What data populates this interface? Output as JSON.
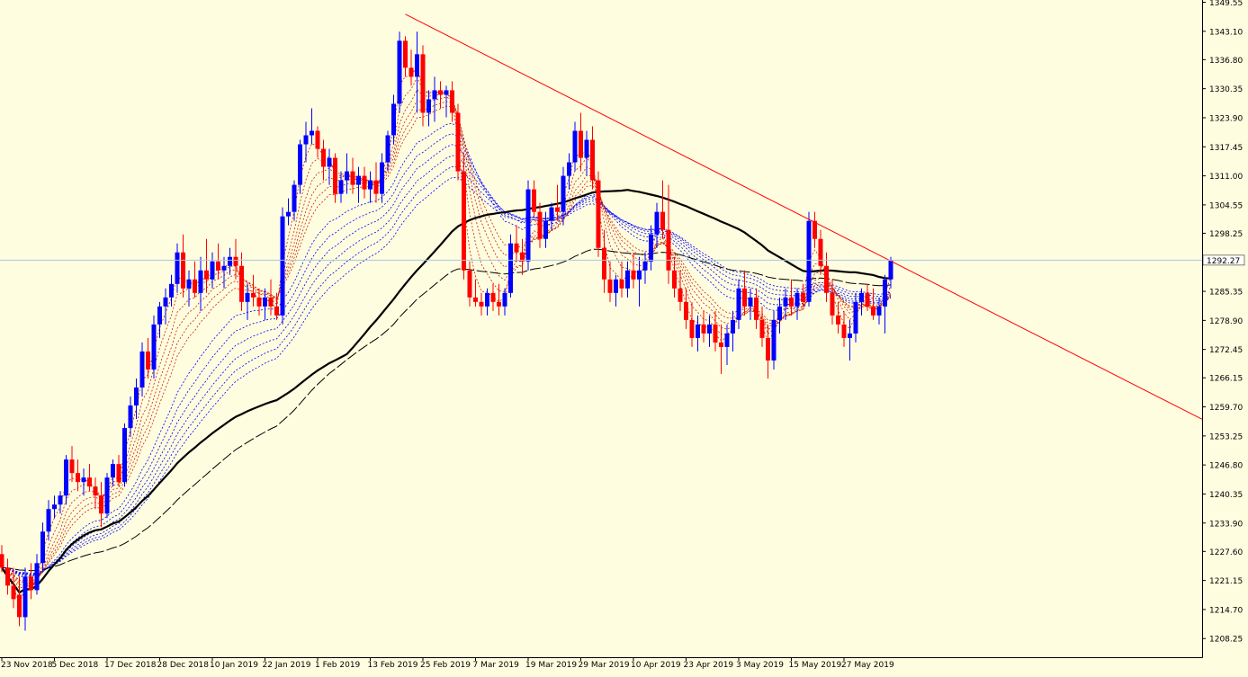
{
  "chart_data": {
    "type": "candlestick",
    "title": "",
    "xlabel": "",
    "ylabel": "",
    "ylim": [
      1205.0,
      1349.55
    ],
    "current_price": "1292.27",
    "y_ticks": [
      "1349.55",
      "1343.10",
      "1336.80",
      "1330.35",
      "1323.90",
      "1317.45",
      "1311.00",
      "1304.55",
      "1298.25",
      "1285.35",
      "1278.90",
      "1272.45",
      "1266.15",
      "1259.70",
      "1253.25",
      "1246.80",
      "1240.35",
      "1233.90",
      "1227.60",
      "1221.15",
      "1214.70",
      "1208.25"
    ],
    "x_ticks": [
      "23 Nov 2018",
      "5 Dec 2018",
      "17 Dec 2018",
      "28 Dec 2018",
      "10 Jan 2019",
      "22 Jan 2019",
      "1 Feb 2019",
      "13 Feb 2019",
      "25 Feb 2019",
      "7 Mar 2019",
      "19 Mar 2019",
      "29 Mar 2019",
      "10 Apr 2019",
      "23 Apr 2019",
      "3 May 2019",
      "15 May 2019",
      "27 May 2019"
    ],
    "x_tick_index": [
      0,
      9,
      18,
      27,
      36,
      45,
      54,
      63,
      72,
      81,
      90,
      99,
      108,
      117,
      126,
      135,
      144
    ],
    "grid": false,
    "colors": {
      "up": "#0000ff",
      "down": "#ff0000",
      "background": "#fffde0",
      "trendline": "#ff0000",
      "ma_long": "#000000",
      "ma_fast": "#cc2200",
      "ma_slow": "#0000ff",
      "price_line": "#a8c8e0"
    },
    "trendline": {
      "start": [
        69,
        1346.9
      ],
      "end": [
        190,
        1267.0
      ]
    },
    "candles": [
      [
        1227.0,
        1229.0,
        1223.0,
        1224.0
      ],
      [
        1224.0,
        1226.0,
        1218.0,
        1220.0
      ],
      [
        1220.0,
        1224.0,
        1215.0,
        1217.0
      ],
      [
        1218.0,
        1222.0,
        1211.0,
        1213.0
      ],
      [
        1213.0,
        1224.0,
        1210.0,
        1222.0
      ],
      [
        1222.0,
        1225.0,
        1217.0,
        1219.0
      ],
      [
        1219.0,
        1227.0,
        1218.0,
        1225.0
      ],
      [
        1225.0,
        1234.0,
        1223.0,
        1232.0
      ],
      [
        1232.0,
        1239.0,
        1230.0,
        1237.0
      ],
      [
        1237.0,
        1240.0,
        1235.0,
        1238.0
      ],
      [
        1238.0,
        1241.0,
        1236.0,
        1240.0
      ],
      [
        1240.0,
        1249.0,
        1238.0,
        1248.0
      ],
      [
        1248.0,
        1251.0,
        1243.0,
        1245.0
      ],
      [
        1245.0,
        1248.0,
        1241.0,
        1243.0
      ],
      [
        1243.0,
        1246.0,
        1240.0,
        1244.0
      ],
      [
        1244.0,
        1247.0,
        1241.0,
        1242.0
      ],
      [
        1242.0,
        1244.0,
        1237.0,
        1240.0
      ],
      [
        1240.0,
        1243.0,
        1233.0,
        1236.0
      ],
      [
        1236.0,
        1245.0,
        1235.0,
        1244.0
      ],
      [
        1244.0,
        1248.0,
        1242.0,
        1247.0
      ],
      [
        1247.0,
        1249.0,
        1242.0,
        1243.0
      ],
      [
        1243.0,
        1256.0,
        1242.0,
        1255.0
      ],
      [
        1255.0,
        1262.0,
        1253.0,
        1260.0
      ],
      [
        1260.0,
        1266.0,
        1257.0,
        1264.0
      ],
      [
        1264.0,
        1274.0,
        1262.0,
        1272.0
      ],
      [
        1272.0,
        1275.0,
        1266.0,
        1268.0
      ],
      [
        1268.0,
        1280.0,
        1266.0,
        1278.0
      ],
      [
        1278.0,
        1283.0,
        1275.0,
        1282.0
      ],
      [
        1282.0,
        1286.0,
        1278.0,
        1284.0
      ],
      [
        1284.0,
        1289.0,
        1282.0,
        1287.0
      ],
      [
        1287.0,
        1296.0,
        1285.0,
        1294.0
      ],
      [
        1294.0,
        1298.0,
        1284.0,
        1286.0
      ],
      [
        1286.0,
        1290.0,
        1282.0,
        1288.0
      ],
      [
        1288.0,
        1292.0,
        1284.0,
        1285.0
      ],
      [
        1285.0,
        1293.0,
        1281.0,
        1290.0
      ],
      [
        1290.0,
        1297.0,
        1285.0,
        1288.0
      ],
      [
        1288.0,
        1294.0,
        1286.0,
        1292.0
      ],
      [
        1292.0,
        1296.0,
        1288.0,
        1290.0
      ],
      [
        1290.0,
        1293.0,
        1286.0,
        1291.0
      ],
      [
        1291.0,
        1295.0,
        1289.0,
        1293.0
      ],
      [
        1293.0,
        1297.0,
        1288.0,
        1291.0
      ],
      [
        1291.0,
        1294.0,
        1281.0,
        1283.0
      ],
      [
        1283.0,
        1287.0,
        1279.0,
        1285.0
      ],
      [
        1285.0,
        1289.0,
        1282.0,
        1284.0
      ],
      [
        1284.0,
        1286.0,
        1280.0,
        1282.0
      ],
      [
        1282.0,
        1286.0,
        1279.0,
        1284.0
      ],
      [
        1284.0,
        1288.0,
        1280.0,
        1282.0
      ],
      [
        1282.0,
        1285.0,
        1279.0,
        1280.0
      ],
      [
        1280.0,
        1304.0,
        1278.0,
        1302.0
      ],
      [
        1302.0,
        1306.0,
        1300.0,
        1303.0
      ],
      [
        1303.0,
        1310.0,
        1301.0,
        1309.0
      ],
      [
        1309.0,
        1319.0,
        1307.0,
        1318.0
      ],
      [
        1318.0,
        1323.0,
        1314.0,
        1320.0
      ],
      [
        1320.0,
        1326.0,
        1318.0,
        1321.0
      ],
      [
        1321.0,
        1322.0,
        1315.0,
        1317.0
      ],
      [
        1317.0,
        1319.0,
        1310.0,
        1313.0
      ],
      [
        1313.0,
        1317.0,
        1309.0,
        1315.0
      ],
      [
        1315.0,
        1316.0,
        1305.0,
        1307.0
      ],
      [
        1307.0,
        1312.0,
        1305.0,
        1310.0
      ],
      [
        1310.0,
        1316.0,
        1307.0,
        1312.0
      ],
      [
        1312.0,
        1315.0,
        1307.0,
        1309.0
      ],
      [
        1309.0,
        1313.0,
        1305.0,
        1311.0
      ],
      [
        1311.0,
        1313.0,
        1306.0,
        1308.0
      ],
      [
        1308.0,
        1312.0,
        1305.0,
        1310.0
      ],
      [
        1310.0,
        1314.0,
        1305.0,
        1307.0
      ],
      [
        1307.0,
        1316.0,
        1305.0,
        1314.0
      ],
      [
        1314.0,
        1321.0,
        1312.0,
        1320.0
      ],
      [
        1320.0,
        1329.0,
        1318.0,
        1327.0
      ],
      [
        1327.0,
        1343.0,
        1325.0,
        1341.0
      ],
      [
        1341.0,
        1342.0,
        1333.0,
        1335.0
      ],
      [
        1335.0,
        1339.0,
        1331.0,
        1333.0
      ],
      [
        1333.0,
        1343.0,
        1325.0,
        1338.0
      ],
      [
        1338.0,
        1340.0,
        1322.0,
        1325.0
      ],
      [
        1325.0,
        1330.0,
        1322.0,
        1328.0
      ],
      [
        1328.0,
        1333.0,
        1323.0,
        1330.0
      ],
      [
        1330.0,
        1332.0,
        1326.0,
        1329.0
      ],
      [
        1329.0,
        1331.0,
        1324.0,
        1330.0
      ],
      [
        1330.0,
        1332.0,
        1323.0,
        1325.0
      ],
      [
        1325.0,
        1327.0,
        1310.0,
        1312.0
      ],
      [
        1312.0,
        1316.0,
        1288.0,
        1290.0
      ],
      [
        1290.0,
        1292.0,
        1282.0,
        1284.0
      ],
      [
        1284.0,
        1288.0,
        1282.0,
        1283.0
      ],
      [
        1283.0,
        1285.0,
        1280.0,
        1282.0
      ],
      [
        1282.0,
        1286.0,
        1280.0,
        1285.0
      ],
      [
        1285.0,
        1287.0,
        1281.0,
        1283.0
      ],
      [
        1283.0,
        1287.0,
        1280.0,
        1282.0
      ],
      [
        1282.0,
        1286.0,
        1280.0,
        1285.0
      ],
      [
        1285.0,
        1298.0,
        1284.0,
        1296.0
      ],
      [
        1296.0,
        1300.0,
        1292.0,
        1294.0
      ],
      [
        1294.0,
        1297.0,
        1289.0,
        1292.0
      ],
      [
        1292.0,
        1310.0,
        1290.0,
        1308.0
      ],
      [
        1308.0,
        1310.0,
        1302.0,
        1303.0
      ],
      [
        1303.0,
        1305.0,
        1295.0,
        1297.0
      ],
      [
        1297.0,
        1303.0,
        1295.0,
        1301.0
      ],
      [
        1301.0,
        1305.0,
        1299.0,
        1304.0
      ],
      [
        1304.0,
        1309.0,
        1301.0,
        1303.0
      ],
      [
        1303.0,
        1313.0,
        1300.0,
        1311.0
      ],
      [
        1311.0,
        1316.0,
        1308.0,
        1314.0
      ],
      [
        1314.0,
        1323.0,
        1312.0,
        1321.0
      ],
      [
        1321.0,
        1325.0,
        1312.0,
        1315.0
      ]
    ],
    "candles_2": [
      [
        1315.0,
        1321.0,
        1311.0,
        1319.0
      ],
      [
        1319.0,
        1322.0,
        1308.0,
        1310.0
      ],
      [
        1310.0,
        1312.0,
        1293.0,
        1295.0
      ],
      [
        1295.0,
        1299.0,
        1285.0,
        1288.0
      ],
      [
        1288.0,
        1292.0,
        1283.0,
        1285.0
      ],
      [
        1285.0,
        1289.0,
        1282.0,
        1288.0
      ],
      [
        1288.0,
        1292.0,
        1284.0,
        1286.0
      ],
      [
        1286.0,
        1292.0,
        1284.0,
        1290.0
      ],
      [
        1290.0,
        1294.0,
        1286.0,
        1288.0
      ],
      [
        1288.0,
        1293.0,
        1282.0,
        1290.0
      ],
      [
        1290.0,
        1294.0,
        1287.0,
        1292.0
      ],
      [
        1292.0,
        1300.0,
        1290.0,
        1298.0
      ],
      [
        1298.0,
        1305.0,
        1295.0,
        1303.0
      ],
      [
        1303.0,
        1310.0,
        1297.0,
        1299.0
      ],
      [
        1299.0,
        1309.0,
        1287.0,
        1290.0
      ],
      [
        1290.0,
        1293.0,
        1284.0,
        1286.0
      ],
      [
        1286.0,
        1290.0,
        1281.0,
        1283.0
      ],
      [
        1283.0,
        1286.0,
        1277.0,
        1279.0
      ],
      [
        1279.0,
        1283.0,
        1273.0,
        1275.0
      ],
      [
        1275.0,
        1280.0,
        1272.0,
        1278.0
      ],
      [
        1278.0,
        1281.0,
        1274.0,
        1276.0
      ],
      [
        1276.0,
        1280.0,
        1273.0,
        1278.0
      ],
      [
        1278.0,
        1281.0,
        1272.0,
        1274.0
      ],
      [
        1274.0,
        1278.0,
        1267.0,
        1273.0
      ],
      [
        1273.0,
        1278.0,
        1269.0,
        1276.0
      ],
      [
        1276.0,
        1281.0,
        1272.0,
        1279.0
      ],
      [
        1279.0,
        1288.0,
        1277.0,
        1286.0
      ],
      [
        1286.0,
        1290.0,
        1280.0,
        1282.0
      ],
      [
        1282.0,
        1286.0,
        1279.0,
        1284.0
      ],
      [
        1284.0,
        1286.0,
        1277.0,
        1279.0
      ],
      [
        1279.0,
        1282.0,
        1273.0,
        1275.0
      ],
      [
        1275.0,
        1278.0,
        1266.0,
        1270.0
      ],
      [
        1270.0,
        1281.0,
        1268.0,
        1279.0
      ],
      [
        1279.0,
        1284.0,
        1276.0,
        1282.0
      ],
      [
        1282.0,
        1286.0,
        1279.0,
        1284.0
      ],
      [
        1284.0,
        1288.0,
        1280.0,
        1282.0
      ],
      [
        1282.0,
        1286.0,
        1279.0,
        1285.0
      ],
      [
        1285.0,
        1287.0,
        1282.0,
        1283.0
      ],
      [
        1283.0,
        1303.0,
        1282.0,
        1301.0
      ],
      [
        1301.0,
        1303.0,
        1295.0,
        1297.0
      ],
      [
        1297.0,
        1299.0,
        1289.0,
        1291.0
      ],
      [
        1291.0,
        1294.0,
        1283.0,
        1285.0
      ],
      [
        1285.0,
        1288.0,
        1278.0,
        1280.0
      ],
      [
        1280.0,
        1283.0,
        1276.0,
        1278.0
      ],
      [
        1278.0,
        1281.0,
        1273.0,
        1275.0
      ],
      [
        1275.0,
        1279.0,
        1270.0,
        1276.0
      ],
      [
        1276.0,
        1285.0,
        1274.0,
        1283.0
      ],
      [
        1283.0,
        1286.0,
        1280.0,
        1285.0
      ],
      [
        1285.0,
        1287.0,
        1281.0,
        1282.0
      ],
      [
        1282.0,
        1286.0,
        1279.0,
        1280.0
      ],
      [
        1280.0,
        1284.0,
        1278.0,
        1282.0
      ],
      [
        1282.0,
        1289.0,
        1276.0,
        1288.0
      ],
      [
        1288.0,
        1293.0,
        1286.0,
        1292.27
      ]
    ]
  }
}
